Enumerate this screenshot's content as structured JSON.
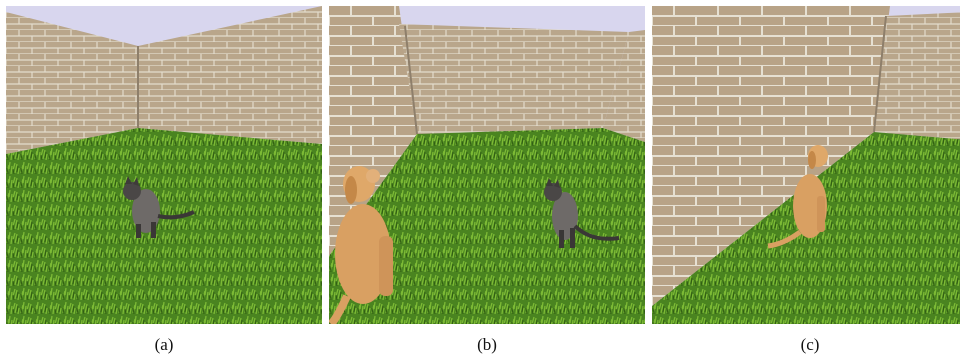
{
  "figure": {
    "panels": [
      {
        "id": "a",
        "caption": "(a)",
        "animals": [
          "cat"
        ]
      },
      {
        "id": "b",
        "caption": "(b)",
        "animals": [
          "dog",
          "cat"
        ]
      },
      {
        "id": "c",
        "caption": "(c)",
        "animals": [
          "dog"
        ]
      }
    ]
  },
  "colors": {
    "sky": "#d8d6ee",
    "wall": "#b8a48a",
    "grass": "#4f8a1f",
    "cat": "#6e6a68",
    "dog": "#d9a062"
  }
}
